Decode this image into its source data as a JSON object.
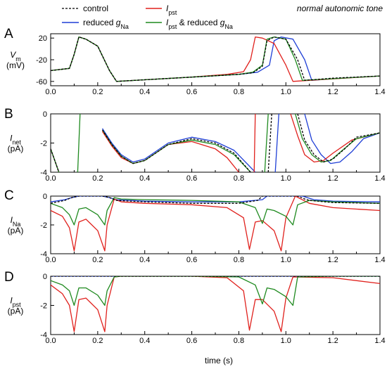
{
  "note": "normal autonomic tone",
  "xlabel": "time (s)",
  "legend": [
    {
      "key": "control",
      "text": "control",
      "color": "#000000",
      "dash": true
    },
    {
      "key": "reduced_gna",
      "text": "reduced gNa",
      "color": "#1f3fd6",
      "dash": false
    },
    {
      "key": "ipst",
      "text": "Ipst",
      "color": "#e0201c",
      "dash": false
    },
    {
      "key": "ipst_reduced_gna",
      "text": "Ipst & reduced gNa",
      "color": "#1f8a1f",
      "dash": false
    }
  ],
  "chart_data": [
    {
      "type": "line",
      "panel": "A",
      "ylabel": "Vm (mV)",
      "xlim": [
        0,
        1.4
      ],
      "ylim": [
        -68,
        28
      ],
      "yticks": [
        20,
        -20,
        -60
      ],
      "series": [
        {
          "key": "control",
          "x": [
            0,
            0.08,
            0.1,
            0.12,
            0.15,
            0.2,
            0.25,
            0.28,
            0.4,
            0.6,
            0.8,
            0.86,
            0.9,
            0.92,
            0.95,
            1.0,
            1.05,
            1.08,
            1.2,
            1.4
          ],
          "y": [
            -40,
            -36,
            -10,
            22,
            18,
            5,
            -40,
            -60,
            -57,
            -52,
            -47,
            -44,
            -32,
            15,
            22,
            18,
            -20,
            -58,
            -54,
            -50
          ]
        },
        {
          "key": "reduced_gna",
          "x": [
            0,
            0.08,
            0.1,
            0.12,
            0.15,
            0.2,
            0.25,
            0.28,
            0.4,
            0.6,
            0.8,
            0.88,
            0.93,
            0.95,
            0.98,
            1.03,
            1.08,
            1.11,
            1.2,
            1.4
          ],
          "y": [
            -40,
            -36,
            -10,
            22,
            18,
            5,
            -40,
            -60,
            -57,
            -52,
            -47,
            -43,
            -30,
            15,
            22,
            18,
            -20,
            -58,
            -55,
            -50
          ]
        },
        {
          "key": "ipst",
          "x": [
            0,
            0.08,
            0.1,
            0.12,
            0.15,
            0.2,
            0.25,
            0.28,
            0.4,
            0.6,
            0.75,
            0.82,
            0.85,
            0.87,
            0.9,
            0.95,
            1.0,
            1.03,
            1.1,
            1.4
          ],
          "y": [
            -40,
            -36,
            -10,
            22,
            18,
            5,
            -40,
            -60,
            -57,
            -52,
            -47,
            -42,
            -20,
            22,
            20,
            10,
            -30,
            -60,
            -58,
            -50
          ]
        },
        {
          "key": "ipst_reduced_gna",
          "x": [
            0,
            0.08,
            0.1,
            0.12,
            0.15,
            0.2,
            0.25,
            0.28,
            0.4,
            0.6,
            0.8,
            0.86,
            0.9,
            0.92,
            0.95,
            1.0,
            1.04,
            1.07,
            1.2,
            1.4
          ],
          "y": [
            -40,
            -36,
            -10,
            22,
            18,
            5,
            -40,
            -60,
            -57,
            -52,
            -47,
            -43,
            -30,
            18,
            22,
            18,
            -20,
            -58,
            -55,
            -50
          ]
        }
      ]
    },
    {
      "type": "line",
      "panel": "B",
      "ylabel": "Inet (pA)",
      "xlim": [
        0,
        1.4
      ],
      "ylim": [
        -4,
        0
      ],
      "yticks": [
        0,
        -2,
        -4
      ],
      "series": [
        {
          "key": "control",
          "segments": [
            {
              "x": [
                0,
                0.035
              ],
              "y": [
                -2.4,
                -4
              ]
            },
            {
              "x": [
                0.22,
                0.26,
                0.3,
                0.35,
                0.4,
                0.5,
                0.6,
                0.7,
                0.78,
                0.85
              ],
              "y": [
                -1.1,
                -2.1,
                -2.9,
                -3.4,
                -3.2,
                -2.1,
                -1.7,
                -2.0,
                -2.7,
                -4
              ]
            },
            {
              "x": [
                0.925,
                0.94
              ],
              "y": [
                -4,
                0
              ]
            },
            {
              "x": [
                1.05,
                1.08,
                1.12,
                1.16,
                1.2,
                1.25,
                1.3,
                1.4
              ],
              "y": [
                0,
                -1.8,
                -2.8,
                -3.3,
                -3.1,
                -2.4,
                -1.6,
                -1.3
              ]
            }
          ]
        },
        {
          "key": "reduced_gna",
          "segments": [
            {
              "x": [
                0,
                0.035
              ],
              "y": [
                -2.4,
                -4
              ]
            },
            {
              "x": [
                0.22,
                0.26,
                0.3,
                0.35,
                0.4,
                0.5,
                0.6,
                0.7,
                0.78,
                0.87
              ],
              "y": [
                -1.0,
                -2.0,
                -2.8,
                -3.3,
                -3.1,
                -2.0,
                -1.6,
                -1.9,
                -2.5,
                -4
              ]
            },
            {
              "x": [
                0.955,
                0.97
              ],
              "y": [
                -4,
                0
              ]
            },
            {
              "x": [
                1.08,
                1.11,
                1.15,
                1.19,
                1.23,
                1.28,
                1.33,
                1.4
              ],
              "y": [
                0,
                -1.8,
                -2.8,
                -3.4,
                -3.3,
                -2.6,
                -1.7,
                -1.3
              ]
            }
          ]
        },
        {
          "key": "ipst",
          "segments": [
            {
              "x": [
                0,
                0.035
              ],
              "y": [
                -2.4,
                -4
              ]
            },
            {
              "x": [
                0.22,
                0.26,
                0.3,
                0.35,
                0.4,
                0.5,
                0.6,
                0.7,
                0.75,
                0.8
              ],
              "y": [
                -1.2,
                -2.2,
                -3.0,
                -3.4,
                -3.2,
                -2.1,
                -1.9,
                -2.4,
                -3.0,
                -4
              ]
            },
            {
              "x": [
                0.865,
                0.87
              ],
              "y": [
                -4,
                0
              ]
            },
            {
              "x": [
                1.02,
                1.05,
                1.08,
                1.12,
                1.16,
                1.2,
                1.28,
                1.4
              ],
              "y": [
                0,
                -1.5,
                -2.8,
                -3.3,
                -3.2,
                -2.7,
                -1.8,
                -1.3
              ]
            }
          ]
        },
        {
          "key": "ipst_reduced_gna",
          "segments": [
            {
              "x": [
                0,
                0.035
              ],
              "y": [
                -2.4,
                -4
              ]
            },
            {
              "x": [
                0.115,
                0.125
              ],
              "y": [
                -4,
                0
              ]
            },
            {
              "x": [
                0.22,
                0.26,
                0.3,
                0.35,
                0.4,
                0.5,
                0.6,
                0.7,
                0.78,
                0.85
              ],
              "y": [
                -1.1,
                -2.1,
                -2.9,
                -3.4,
                -3.2,
                -2.1,
                -1.8,
                -2.1,
                -2.8,
                -4
              ]
            },
            {
              "x": [
                0.91,
                0.925
              ],
              "y": [
                -4,
                0
              ]
            },
            {
              "x": [
                1.04,
                1.07,
                1.11,
                1.15,
                1.19,
                1.24,
                1.3,
                1.4
              ],
              "y": [
                0,
                -1.7,
                -2.8,
                -3.3,
                -3.2,
                -2.5,
                -1.7,
                -1.3
              ]
            }
          ]
        }
      ]
    },
    {
      "type": "line",
      "panel": "C",
      "ylabel": "INa (pA)",
      "xlim": [
        0,
        1.4
      ],
      "ylim": [
        -4,
        0
      ],
      "yticks": [
        0,
        -2,
        -4
      ],
      "series": [
        {
          "key": "control",
          "x": [
            0,
            0.06,
            0.09,
            0.12,
            0.15,
            0.22,
            0.25,
            0.28,
            0.4,
            0.6,
            0.8,
            0.88,
            0.9,
            0.92,
            0.98,
            1.05,
            1.08,
            1.1,
            1.2,
            1.4
          ],
          "y": [
            -0.5,
            -0.3,
            -0.1,
            0,
            0,
            0,
            -0.1,
            -0.3,
            -0.4,
            -0.5,
            -0.5,
            -0.3,
            0,
            0,
            0,
            0,
            -0.2,
            -0.3,
            -0.45,
            -0.5
          ]
        },
        {
          "key": "reduced_gna",
          "x": [
            0,
            0.06,
            0.09,
            0.12,
            0.15,
            0.22,
            0.25,
            0.28,
            0.4,
            0.6,
            0.8,
            0.9,
            0.92,
            0.94,
            1.0,
            1.07,
            1.1,
            1.12,
            1.2,
            1.4
          ],
          "y": [
            -0.4,
            -0.25,
            -0.1,
            0,
            0,
            0,
            -0.1,
            -0.25,
            -0.35,
            -0.4,
            -0.4,
            -0.25,
            0,
            0,
            0,
            0,
            -0.15,
            -0.25,
            -0.35,
            -0.4
          ]
        },
        {
          "key": "ipst",
          "x": [
            0,
            0.05,
            0.08,
            0.1,
            0.12,
            0.15,
            0.2,
            0.23,
            0.24,
            0.27,
            0.3,
            0.4,
            0.6,
            0.75,
            0.82,
            0.845,
            0.87,
            0.9,
            0.95,
            0.98,
            1.0,
            1.04,
            1.1,
            1.2,
            1.4
          ],
          "y": [
            -1.0,
            -1.4,
            -2.2,
            -3.8,
            -1.8,
            -1.6,
            -2.4,
            -3.8,
            -2.0,
            -0.2,
            -0.4,
            -0.5,
            -0.6,
            -0.8,
            -1.5,
            -3.7,
            -1.8,
            -1.7,
            -2.4,
            -3.8,
            -1.5,
            0,
            -0.5,
            -0.8,
            -1.0
          ]
        },
        {
          "key": "ipst_reduced_gna",
          "x": [
            0,
            0.05,
            0.08,
            0.1,
            0.12,
            0.15,
            0.2,
            0.23,
            0.24,
            0.27,
            0.3,
            0.4,
            0.6,
            0.8,
            0.87,
            0.9,
            0.92,
            0.95,
            1.0,
            1.03,
            1.05,
            1.1,
            1.2,
            1.4
          ],
          "y": [
            -0.5,
            -0.8,
            -1.3,
            -2.0,
            -0.9,
            -0.8,
            -1.3,
            -2.0,
            -1.0,
            -0.1,
            -0.2,
            -0.25,
            -0.3,
            -0.4,
            -0.8,
            -1.9,
            -0.9,
            -1.0,
            -1.4,
            -2.0,
            -0.6,
            -0.3,
            -0.4,
            -0.5
          ]
        }
      ]
    },
    {
      "type": "line",
      "panel": "D",
      "ylabel": "Ipst (pA)",
      "xlim": [
        0,
        1.4
      ],
      "ylim": [
        -4,
        0
      ],
      "yticks": [
        0,
        -2,
        -4
      ],
      "series": [
        {
          "key": "control",
          "x": [
            0,
            1.4
          ],
          "y": [
            0,
            0
          ]
        },
        {
          "key": "reduced_gna",
          "x": [
            0,
            1.4
          ],
          "y": [
            0,
            0
          ]
        },
        {
          "key": "ipst",
          "x": [
            0,
            0.05,
            0.08,
            0.1,
            0.12,
            0.15,
            0.2,
            0.23,
            0.24,
            0.27,
            0.3,
            0.6,
            0.75,
            0.82,
            0.845,
            0.87,
            0.9,
            0.95,
            0.98,
            1.0,
            1.03,
            1.2,
            1.4
          ],
          "y": [
            -0.6,
            -1.2,
            -2.0,
            -3.8,
            -1.6,
            -1.5,
            -2.3,
            -3.8,
            -2.0,
            -0.05,
            0,
            0,
            -0.1,
            -1.0,
            -3.7,
            -1.6,
            -1.6,
            -2.4,
            -3.8,
            -1.5,
            -0.05,
            -0.1,
            -0.5
          ]
        },
        {
          "key": "ipst_reduced_gna",
          "x": [
            0,
            0.05,
            0.08,
            0.1,
            0.12,
            0.15,
            0.2,
            0.23,
            0.24,
            0.27,
            0.3,
            0.6,
            0.8,
            0.87,
            0.9,
            0.92,
            0.95,
            1.0,
            1.03,
            1.05,
            1.2,
            1.4
          ],
          "y": [
            -0.3,
            -0.6,
            -1.0,
            -2.0,
            -0.8,
            -0.8,
            -1.3,
            -2.0,
            -1.0,
            -0.05,
            0,
            0,
            -0.05,
            -0.6,
            -1.9,
            -0.8,
            -0.9,
            -1.4,
            -2.0,
            -0.05,
            0,
            0
          ]
        }
      ]
    }
  ]
}
